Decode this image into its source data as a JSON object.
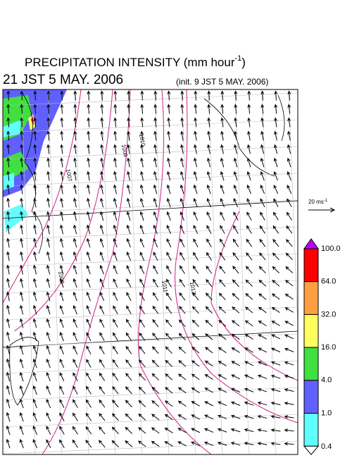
{
  "header": {
    "title": {
      "text": "PRECIPITATION INTENSITY (mm hour",
      "superscript": "-1",
      "suffix": ")"
    },
    "valid_time": "21 JST 5 MAY. 2006",
    "init_time": "(init. 9 JST 5 MAY. 2006)"
  },
  "vector_legend": {
    "text": "20 ms",
    "superscript": "-1"
  },
  "colorbar": {
    "labels": [
      "100.0",
      "64.0",
      "32.0",
      "16.0",
      "4.0",
      "1.0",
      "0.4"
    ],
    "colors": [
      "#c000ff",
      "#ff0000",
      "#ffa040",
      "#ffff60",
      "#40e040",
      "#6060ff",
      "#60ffff",
      "#ffffff"
    ]
  },
  "contours": {
    "labels": [
      "1007",
      "1008",
      "1009",
      "1010",
      "1011",
      "1012"
    ]
  }
}
